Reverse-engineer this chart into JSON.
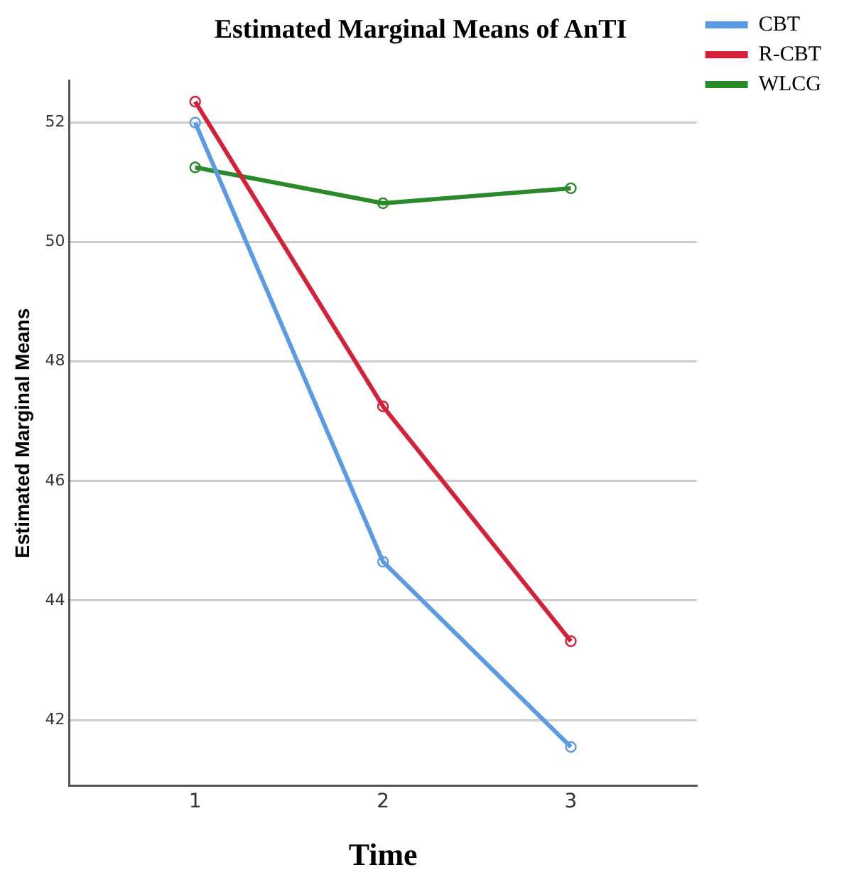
{
  "chart_data": {
    "type": "line",
    "title": "Estimated Marginal Means of AnTI",
    "xlabel": "Time",
    "ylabel": "Estimated Marginal Means",
    "x": [
      1,
      2,
      3
    ],
    "xlim": [
      0.33,
      3.67
    ],
    "xticks": [
      1,
      2,
      3
    ],
    "ylim": [
      40.9,
      52.7
    ],
    "yticks": [
      42,
      44,
      46,
      48,
      50,
      52
    ],
    "series": [
      {
        "name": "CBT",
        "color": "#5b9be6",
        "values": [
          52.0,
          44.65,
          41.55
        ]
      },
      {
        "name": "R-CBT",
        "color": "#d5203a",
        "values": [
          52.35,
          47.25,
          43.32
        ]
      },
      {
        "name": "WLCG",
        "color": "#2a8a2a",
        "values": [
          51.25,
          50.65,
          50.9
        ]
      }
    ],
    "grid": "y",
    "legend": "top right",
    "marker": "circle",
    "line_style": "solid"
  }
}
